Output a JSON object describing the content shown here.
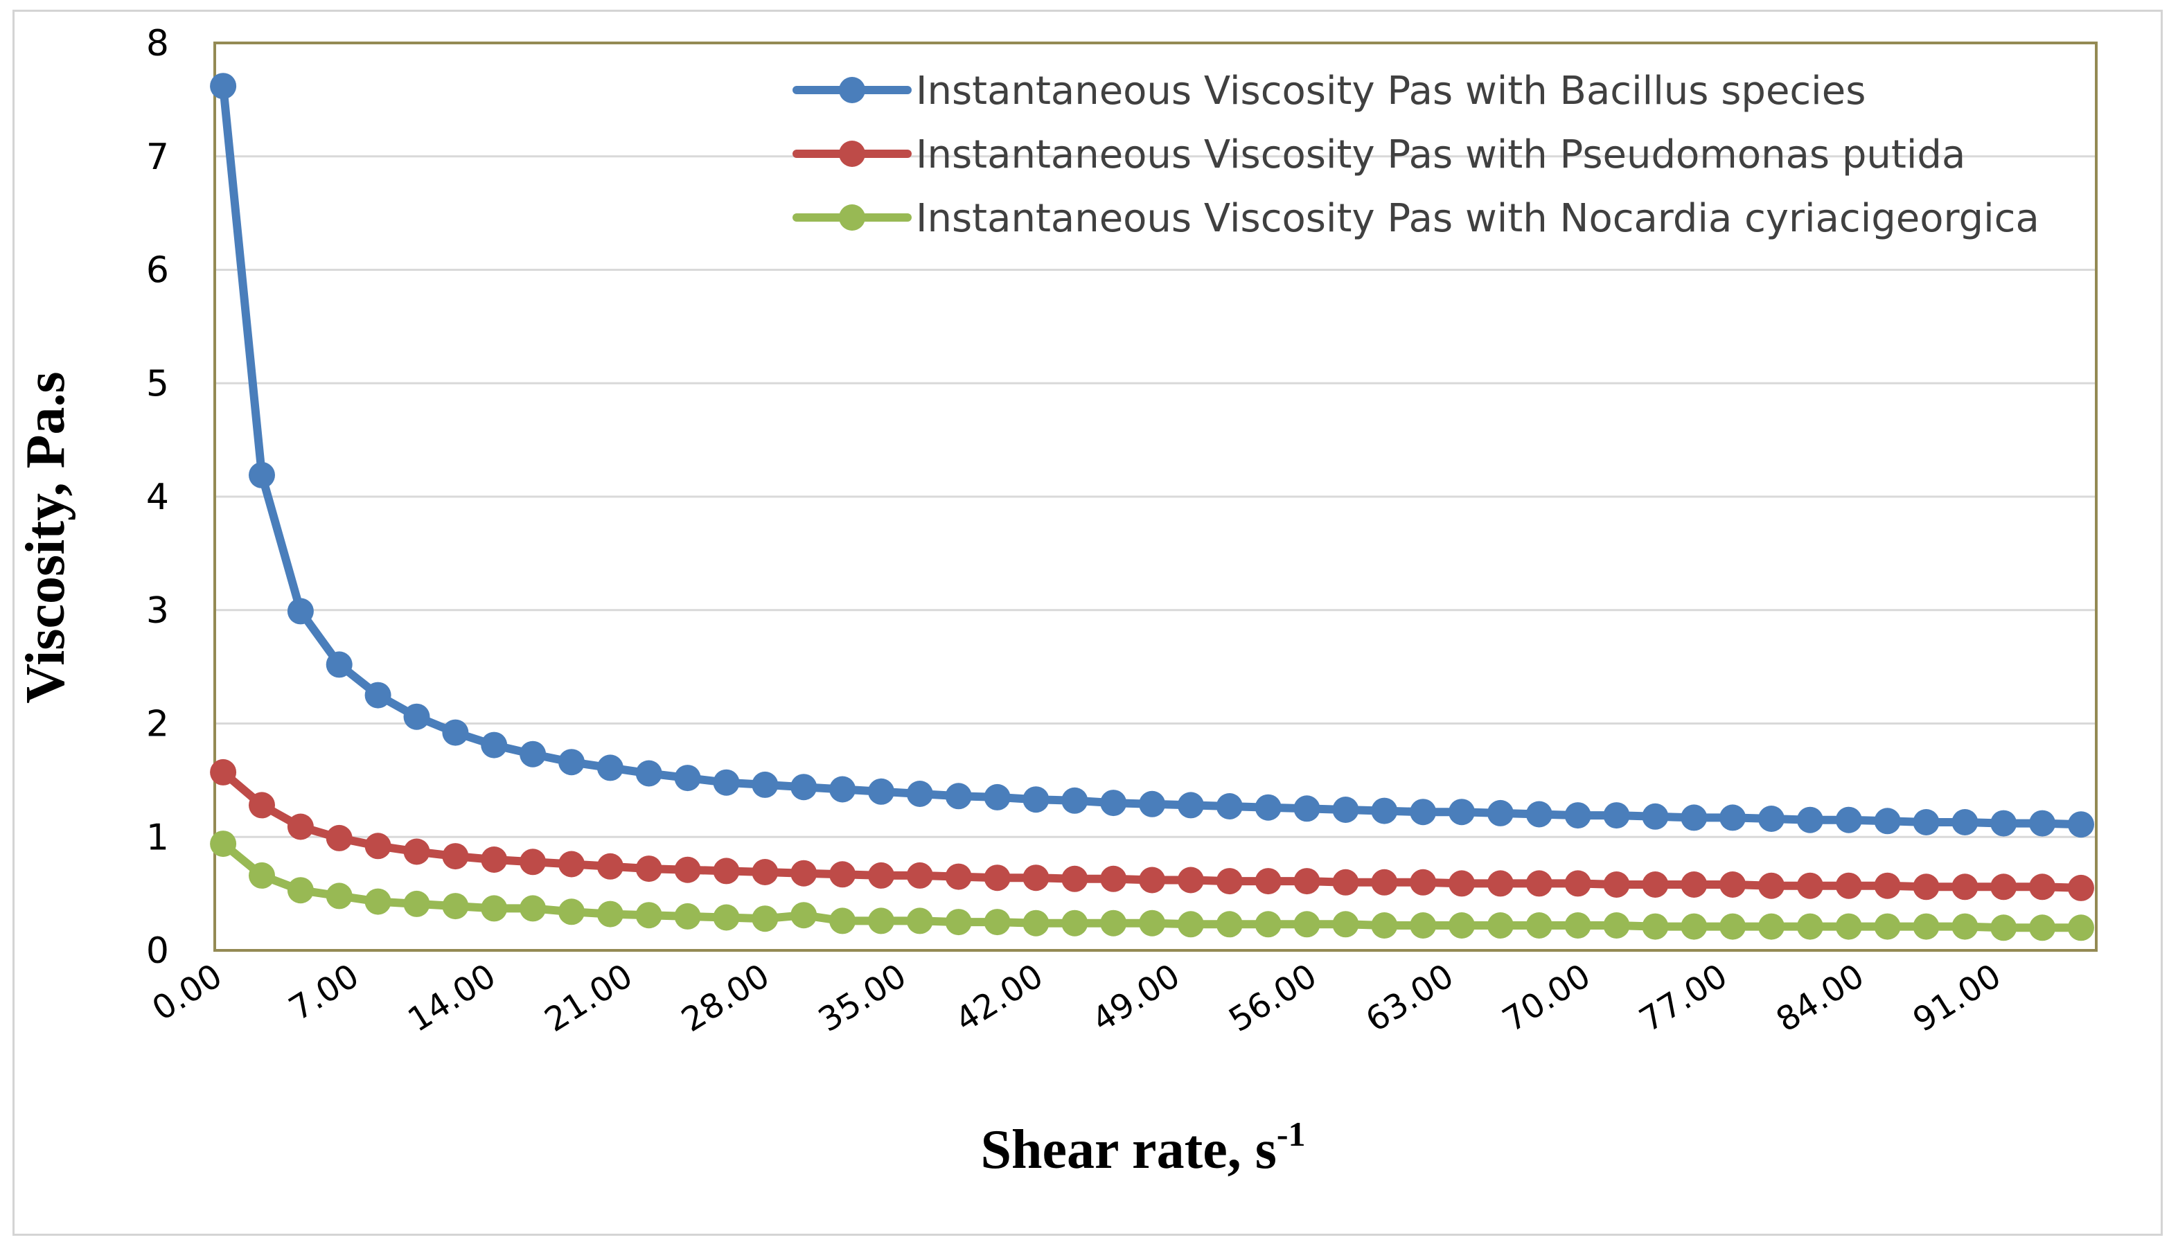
{
  "chart_data": {
    "type": "line",
    "title": "",
    "xlabel": "Shear rate, s",
    "xlabel_superscript": "-1",
    "ylabel": "Viscosity, Pa.s",
    "ylim": [
      0,
      8
    ],
    "yticks": [
      "0",
      "1",
      "2",
      "3",
      "4",
      "5",
      "6",
      "7",
      "8"
    ],
    "xlim": [
      0,
      96.25
    ],
    "xticks": [
      "0.00",
      "7.00",
      "14.00",
      "21.00",
      "28.00",
      "35.00",
      "42.00",
      "49.00",
      "56.00",
      "63.00",
      "70.00",
      "77.00",
      "84.00",
      "91.00"
    ],
    "grid": true,
    "legend_position": "top-right",
    "x": [
      0.43,
      2.41,
      4.39,
      6.37,
      8.35,
      10.33,
      12.31,
      14.29,
      16.27,
      18.25,
      20.23,
      22.21,
      24.19,
      26.17,
      28.15,
      30.13,
      32.11,
      34.09,
      36.07,
      38.05,
      40.03,
      42.01,
      43.99,
      45.97,
      47.95,
      49.93,
      51.91,
      53.89,
      55.87,
      57.85,
      59.83,
      61.81,
      63.79,
      65.77,
      67.75,
      69.73,
      71.71,
      73.69,
      75.67,
      77.65,
      79.63,
      81.61,
      83.59,
      85.57,
      87.55,
      89.53,
      91.51,
      93.49,
      95.47
    ],
    "series": [
      {
        "name": "Instantaneous Viscosity Pas with Bacillus species",
        "color": "#4a7ebb",
        "values": [
          7.62,
          4.19,
          2.99,
          2.52,
          2.25,
          2.06,
          1.92,
          1.81,
          1.73,
          1.66,
          1.61,
          1.56,
          1.52,
          1.48,
          1.46,
          1.44,
          1.42,
          1.4,
          1.38,
          1.36,
          1.35,
          1.33,
          1.32,
          1.3,
          1.29,
          1.28,
          1.27,
          1.26,
          1.25,
          1.24,
          1.23,
          1.22,
          1.22,
          1.21,
          1.2,
          1.19,
          1.19,
          1.18,
          1.17,
          1.17,
          1.16,
          1.15,
          1.15,
          1.14,
          1.13,
          1.13,
          1.12,
          1.12,
          1.11
        ]
      },
      {
        "name": "Instantaneous Viscosity Pas with Pseudomonas putida",
        "color": "#be4b48",
        "values": [
          1.57,
          1.28,
          1.09,
          0.99,
          0.92,
          0.87,
          0.83,
          0.8,
          0.78,
          0.76,
          0.74,
          0.72,
          0.71,
          0.7,
          0.69,
          0.68,
          0.67,
          0.66,
          0.66,
          0.65,
          0.64,
          0.64,
          0.63,
          0.63,
          0.62,
          0.62,
          0.61,
          0.61,
          0.61,
          0.6,
          0.6,
          0.6,
          0.59,
          0.59,
          0.59,
          0.59,
          0.58,
          0.58,
          0.58,
          0.58,
          0.57,
          0.57,
          0.57,
          0.57,
          0.56,
          0.56,
          0.56,
          0.56,
          0.55
        ]
      },
      {
        "name": "Instantaneous Viscosity Pas with Nocardia cyriacigeorgica",
        "color": "#98b954",
        "values": [
          0.94,
          0.66,
          0.53,
          0.48,
          0.43,
          0.41,
          0.39,
          0.37,
          0.37,
          0.34,
          0.32,
          0.31,
          0.3,
          0.29,
          0.28,
          0.31,
          0.26,
          0.26,
          0.26,
          0.25,
          0.25,
          0.24,
          0.24,
          0.24,
          0.24,
          0.23,
          0.23,
          0.23,
          0.23,
          0.23,
          0.22,
          0.22,
          0.22,
          0.22,
          0.22,
          0.22,
          0.22,
          0.21,
          0.21,
          0.21,
          0.21,
          0.21,
          0.21,
          0.21,
          0.21,
          0.21,
          0.2,
          0.2,
          0.2
        ]
      }
    ]
  }
}
